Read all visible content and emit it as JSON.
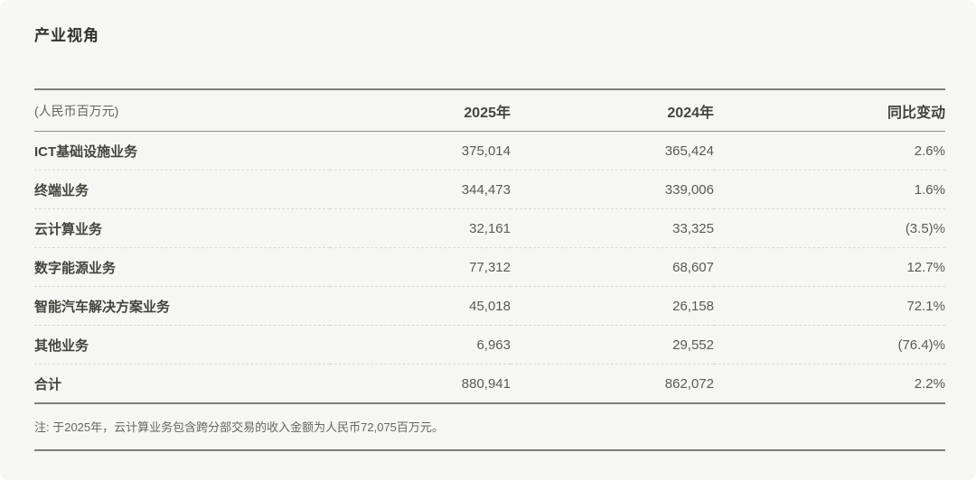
{
  "title": "产业视角",
  "table": {
    "unit_label": "(人民币百万元)",
    "columns": [
      "2025年",
      "2024年",
      "同比变动"
    ],
    "rows": [
      {
        "label": "ICT基础设施业务",
        "v2025": "375,014",
        "v2024": "365,424",
        "yoy": "2.6%"
      },
      {
        "label": "终端业务",
        "v2025": "344,473",
        "v2024": "339,006",
        "yoy": "1.6%"
      },
      {
        "label": "云计算业务",
        "v2025": "32,161",
        "v2024": "33,325",
        "yoy": "(3.5)%"
      },
      {
        "label": "数字能源业务",
        "v2025": "77,312",
        "v2024": "68,607",
        "yoy": "12.7%"
      },
      {
        "label": "智能汽车解决方案业务",
        "v2025": "45,018",
        "v2024": "26,158",
        "yoy": "72.1%"
      },
      {
        "label": "其他业务",
        "v2025": "6,963",
        "v2024": "29,552",
        "yoy": "(76.4)%"
      }
    ],
    "total_row": {
      "label": "合计",
      "v2025": "880,941",
      "v2024": "862,072",
      "yoy": "2.2%"
    }
  },
  "note": "注: 于2025年，云计算业务包含跨分部交易的收入金额为人民币72,075百万元。",
  "colors": {
    "card_background": "#f6f6f4",
    "rule_dark": "#7f7e79",
    "row_divider_dashed": "#d9d8d4",
    "heading_text": "#33322e",
    "value_text": "#5b5a55"
  }
}
